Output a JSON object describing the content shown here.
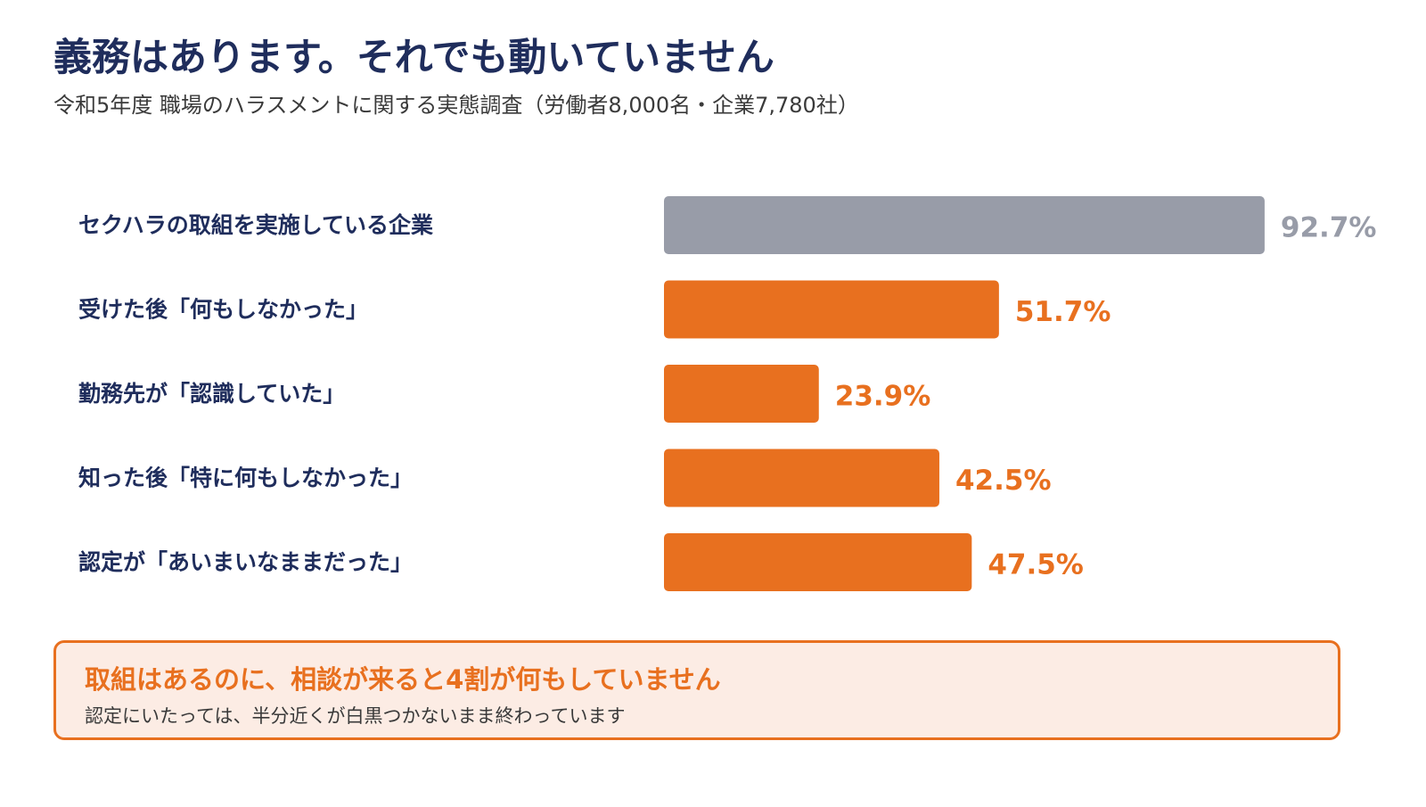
{
  "title": "義務はあります。それでも動いていません",
  "subtitle": "令和5年度 職場のハラスメントに関する実態調査（労働者8,000名・企業7,780社）",
  "colors": {
    "gray_bar": "#989ca8",
    "gray_text": "#989ca8",
    "orange": "#e8701f",
    "navy": "#1f2d5c",
    "callout_bg": "#fcece4"
  },
  "chart_data": {
    "type": "bar",
    "orientation": "horizontal",
    "categories": [
      "セクハラの取組を実施している企業",
      "受けた後「何もしなかった」",
      "勤務先が「認識していた」",
      "知った後「特に何もしなかった」",
      "認定が「あいまいなままだった」"
    ],
    "values": [
      92.7,
      51.7,
      23.9,
      42.5,
      47.5
    ],
    "value_labels": [
      "92.7%",
      "51.7%",
      "23.9%",
      "42.5%",
      "47.5%"
    ],
    "bar_colors": [
      "#989ca8",
      "#e8701f",
      "#e8701f",
      "#e8701f",
      "#e8701f"
    ],
    "xlim": [
      0,
      100
    ],
    "grid": false,
    "legend": "none"
  },
  "callout": {
    "heading": "取組はあるのに、相談が来ると4割が何もしていません",
    "body": "認定にいたっては、半分近くが白黒つかないまま終わっています"
  }
}
